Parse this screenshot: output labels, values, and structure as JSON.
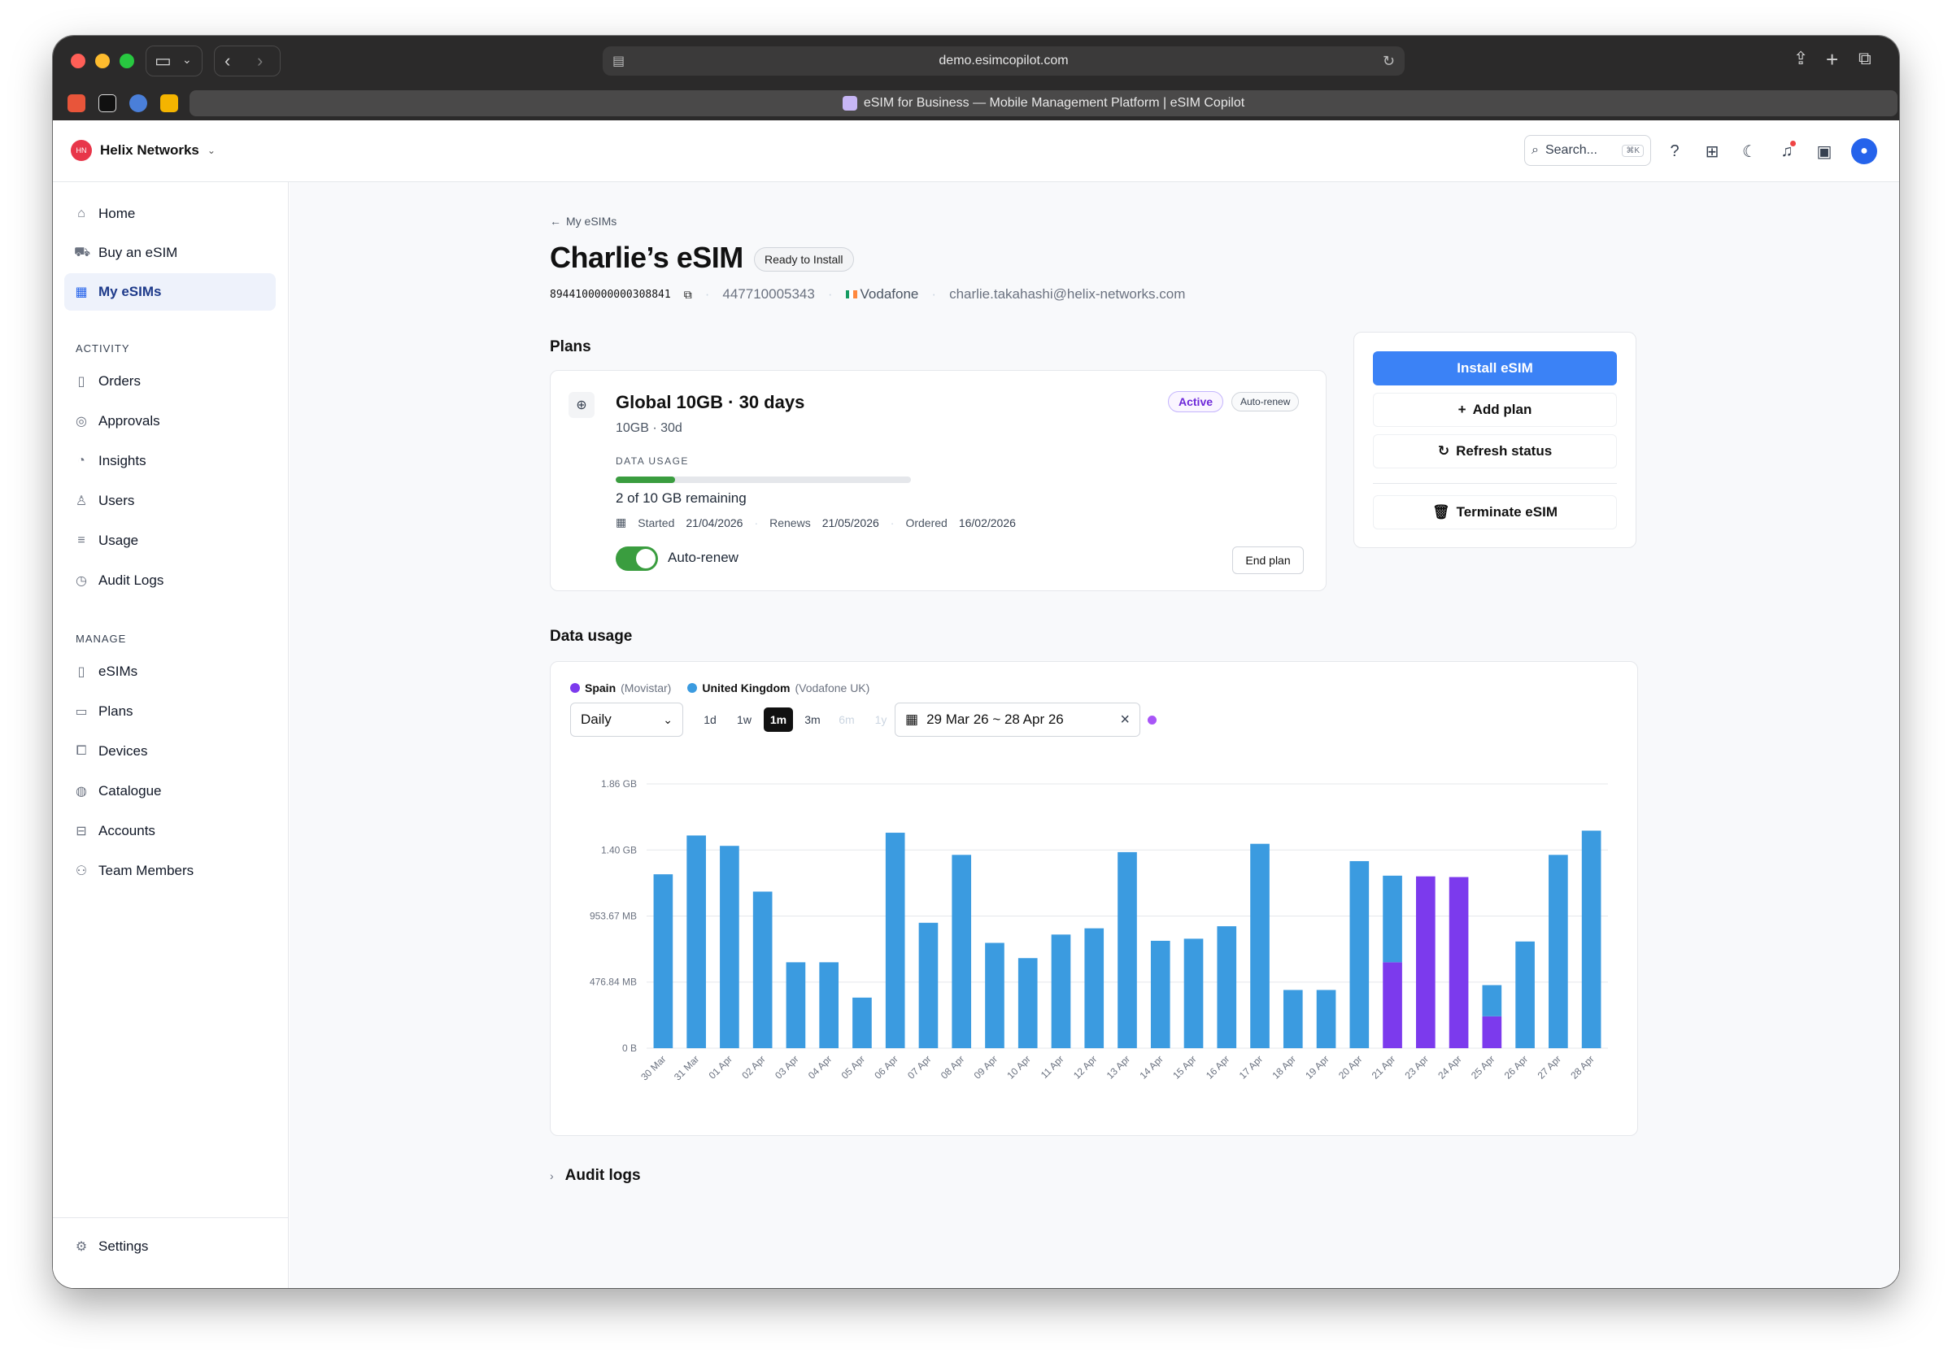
{
  "browser": {
    "url": "demo.esimcopilot.com",
    "tab_title": "eSIM for Business — Mobile Management Platform | eSIM Copilot"
  },
  "header": {
    "org_initials": "HN",
    "org_name": "Helix Networks",
    "search_placeholder": "Search...",
    "search_shortcut": "⌘K"
  },
  "sidebar": {
    "top_items": [
      {
        "label": "Home",
        "icon": "home-icon"
      },
      {
        "label": "Buy an eSIM",
        "icon": "cart-icon"
      },
      {
        "label": "My eSIMs",
        "icon": "qr-icon",
        "active": true
      }
    ],
    "activity_label": "ACTIVITY",
    "activity_items": [
      {
        "label": "Orders",
        "icon": "file-icon"
      },
      {
        "label": "Approvals",
        "icon": "check-circle-icon"
      },
      {
        "label": "Insights",
        "icon": "pie-chart-icon"
      },
      {
        "label": "Users",
        "icon": "user-icon"
      },
      {
        "label": "Usage",
        "icon": "database-icon"
      },
      {
        "label": "Audit Logs",
        "icon": "clock-icon"
      }
    ],
    "manage_label": "MANAGE",
    "manage_items": [
      {
        "label": "eSIMs",
        "icon": "sim-icon"
      },
      {
        "label": "Plans",
        "icon": "document-icon"
      },
      {
        "label": "Devices",
        "icon": "devices-icon"
      },
      {
        "label": "Catalogue",
        "icon": "globe-icon"
      },
      {
        "label": "Accounts",
        "icon": "briefcase-icon"
      },
      {
        "label": "Team Members",
        "icon": "team-icon"
      }
    ],
    "settings_label": "Settings"
  },
  "esim": {
    "back_label": "My eSIMs",
    "title": "Charlie’s eSIM",
    "status": "Ready to Install",
    "iccid": "8944100000000308841",
    "phone": "447710005343",
    "carrier": "Vodafone",
    "email": "charlie.takahashi@helix-networks.com"
  },
  "plans": {
    "section_title": "Plans",
    "plan_name": "Global 10GB · 30 days",
    "plan_sub": "10GB · 30d",
    "badge_active": "Active",
    "badge_autorenew": "Auto-renew",
    "data_usage_label": "DATA USAGE",
    "usage_fraction": 0.2,
    "remaining_text": "2 of 10 GB remaining",
    "started_label": "Started",
    "started": "21/04/2026",
    "renews_label": "Renews",
    "renews": "21/05/2026",
    "ordered_label": "Ordered",
    "ordered": "16/02/2026",
    "autorenew_label": "Auto-renew",
    "autorenew_on": true,
    "end_plan_label": "End plan"
  },
  "actions": {
    "install": "Install eSIM",
    "add_plan": "Add plan",
    "refresh": "Refresh status",
    "terminate": "Terminate eSIM"
  },
  "usage": {
    "section_title": "Data usage",
    "legend": [
      {
        "name": "Spain",
        "detail": "(Movistar)",
        "color": "#7c3aed"
      },
      {
        "name": "United Kingdom",
        "detail": "(Vodafone UK)",
        "color": "#3b9be0"
      }
    ],
    "granularity": "Daily",
    "ranges": [
      {
        "label": "1d",
        "state": "normal"
      },
      {
        "label": "1w",
        "state": "normal"
      },
      {
        "label": "1m",
        "state": "active"
      },
      {
        "label": "3m",
        "state": "normal"
      },
      {
        "label": "6m",
        "state": "disabled"
      },
      {
        "label": "1y",
        "state": "disabled"
      }
    ],
    "date_range": "29 Mar 26 ~ 28 Apr 26"
  },
  "chart_data": {
    "type": "bar",
    "stacked": true,
    "unit": "MB",
    "ylim": [
      0,
      1907.35
    ],
    "y_ticks": [
      {
        "value": 0,
        "label": "0 B"
      },
      {
        "value": 476.84,
        "label": "476.84 MB"
      },
      {
        "value": 953.67,
        "label": "953.67 MB"
      },
      {
        "value": 1430.51,
        "label": "1.40 GB"
      },
      {
        "value": 1907.35,
        "label": "1.86 GB"
      }
    ],
    "categories": [
      "30 Mar",
      "31 Mar",
      "01 Apr",
      "02 Apr",
      "03 Apr",
      "04 Apr",
      "05 Apr",
      "06 Apr",
      "07 Apr",
      "08 Apr",
      "09 Apr",
      "10 Apr",
      "11 Apr",
      "12 Apr",
      "13 Apr",
      "14 Apr",
      "15 Apr",
      "16 Apr",
      "17 Apr",
      "18 Apr",
      "19 Apr",
      "20 Apr",
      "21 Apr",
      "23 Apr",
      "24 Apr",
      "25 Apr",
      "26 Apr",
      "27 Apr",
      "28 Apr"
    ],
    "series": [
      {
        "name": "Spain",
        "color": "#7c3aed",
        "values": [
          0,
          0,
          0,
          0,
          0,
          0,
          0,
          0,
          0,
          0,
          0,
          0,
          0,
          0,
          0,
          0,
          0,
          0,
          0,
          0,
          0,
          0,
          620,
          1240,
          1235,
          230,
          0,
          0,
          0
        ]
      },
      {
        "name": "United Kingdom",
        "color": "#3b9be0",
        "values": [
          1255,
          1535,
          1460,
          1130,
          620,
          620,
          365,
          1555,
          905,
          1395,
          760,
          650,
          820,
          865,
          1415,
          775,
          790,
          880,
          1475,
          420,
          420,
          1350,
          625,
          0,
          0,
          225,
          770,
          1395,
          1570
        ]
      }
    ],
    "grid": true
  },
  "audit": {
    "label": "Audit logs"
  }
}
